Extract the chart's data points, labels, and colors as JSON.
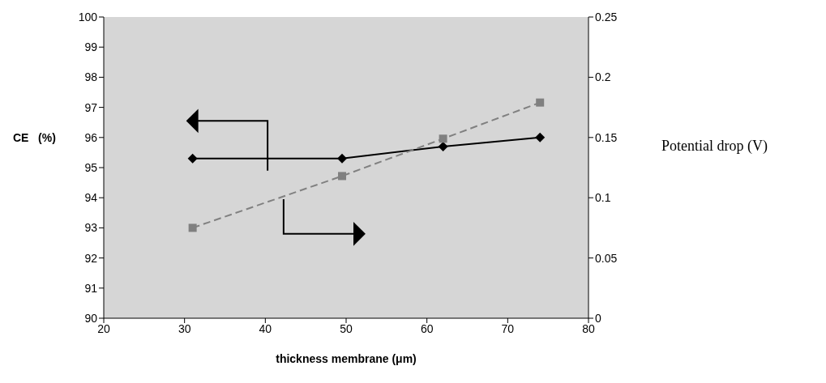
{
  "chart_data": {
    "type": "line",
    "xlabel": "thickness membrane   (μm)",
    "ylabel": "CE   (%)",
    "y2label": "Potential drop (V)",
    "x": [
      31,
      49.5,
      62,
      74
    ],
    "series": [
      {
        "color": "#000000",
        "marker": "diamond",
        "line_style": "solid",
        "values": [
          95.3,
          95.3,
          95.7,
          96.0
        ]
      },
      {
        "color": "#808080",
        "marker": "square",
        "line_style": "dashed",
        "axis": "y2",
        "values": [
          0.075,
          0.118,
          0.149,
          0.179
        ]
      }
    ],
    "xlim": [
      20,
      80
    ],
    "xticks": [
      20,
      30,
      40,
      50,
      60,
      70,
      80
    ],
    "ylim": [
      90,
      100
    ],
    "yticks": [
      90,
      91,
      92,
      93,
      94,
      95,
      96,
      97,
      98,
      99,
      100
    ],
    "y2lim": [
      0,
      0.25
    ],
    "y2ticks": [
      0,
      0.05,
      0.1,
      0.15,
      0.2,
      0.25
    ],
    "grid": false,
    "legend": false
  }
}
